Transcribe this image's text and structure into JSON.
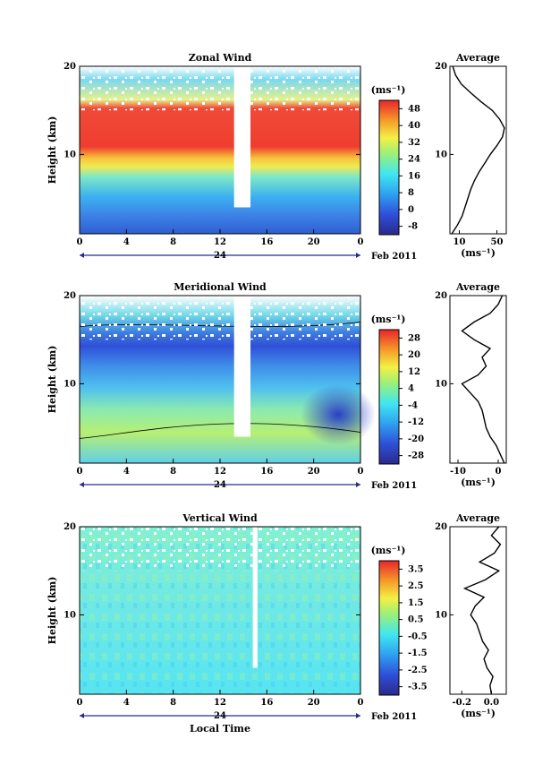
{
  "chart_data": [
    {
      "type": "heatmap",
      "title": "Zonal Wind",
      "ylabel": "Height (km)",
      "xlabel": "",
      "x_ticks": [
        "0",
        "4",
        "8",
        "12",
        "16",
        "20",
        "0"
      ],
      "y_ticks": [
        "10",
        "20"
      ],
      "date_label": "24",
      "month_label": "Feb 2011",
      "xlim": [
        0,
        24
      ],
      "ylim": [
        1,
        20
      ],
      "colorbar": {
        "unit": "(ms⁻¹)",
        "ticks": [
          "48",
          "40",
          "32",
          "24",
          "16",
          "8",
          "0",
          "-8"
        ],
        "range": [
          -12,
          52
        ]
      },
      "data_gap_local_time": [
        13.2,
        14.6
      ],
      "profile": {
        "title": "Average",
        "x_ticks": [
          "10",
          "50"
        ],
        "xlim": [
          0,
          60
        ],
        "xlabel": "(ms⁻¹)",
        "y_ticks": [
          "10",
          "20"
        ],
        "points": [
          [
            1,
            2
          ],
          [
            2,
            8
          ],
          [
            3,
            13
          ],
          [
            4,
            16
          ],
          [
            5,
            19
          ],
          [
            6,
            22
          ],
          [
            7,
            26
          ],
          [
            8,
            31
          ],
          [
            9,
            37
          ],
          [
            10,
            43
          ],
          [
            11,
            50
          ],
          [
            12,
            56
          ],
          [
            13,
            58
          ],
          [
            14,
            53
          ],
          [
            15,
            45
          ],
          [
            16,
            33
          ],
          [
            17,
            22
          ],
          [
            18,
            12
          ],
          [
            19,
            6
          ],
          [
            20,
            3
          ]
        ]
      }
    },
    {
      "type": "heatmap",
      "title": "Meridional Wind",
      "ylabel": "Height (km)",
      "xlabel": "",
      "x_ticks": [
        "0",
        "4",
        "8",
        "12",
        "16",
        "20",
        "0"
      ],
      "y_ticks": [
        "10",
        "20"
      ],
      "date_label": "24",
      "month_label": "Feb 2011",
      "xlim": [
        0,
        24
      ],
      "ylim": [
        1,
        20
      ],
      "colorbar": {
        "unit": "(ms⁻¹)",
        "ticks": [
          "28",
          "20",
          "12",
          "4",
          "-4",
          "-12",
          "-20",
          "-28"
        ],
        "range": [
          -32,
          32
        ]
      },
      "data_gap_local_time": [
        13.2,
        14.6
      ],
      "profile": {
        "title": "Average",
        "x_ticks": [
          "-10",
          "0"
        ],
        "xlim": [
          -12,
          2
        ],
        "xlabel": "(ms⁻¹)",
        "y_ticks": [
          "10",
          "20"
        ],
        "points": [
          [
            1,
            1.5
          ],
          [
            2,
            0.5
          ],
          [
            3,
            -0.5
          ],
          [
            4,
            -2
          ],
          [
            5,
            -3
          ],
          [
            6,
            -3.5
          ],
          [
            7,
            -4
          ],
          [
            8,
            -5
          ],
          [
            9,
            -7
          ],
          [
            10,
            -9
          ],
          [
            11,
            -5
          ],
          [
            12,
            -3
          ],
          [
            13,
            -4
          ],
          [
            14,
            -2
          ],
          [
            15,
            -6
          ],
          [
            16,
            -9
          ],
          [
            17,
            -6
          ],
          [
            18,
            -2
          ],
          [
            19,
            0
          ],
          [
            20,
            1
          ]
        ]
      }
    },
    {
      "type": "heatmap",
      "title": "Vertical Wind",
      "ylabel": "Height (km)",
      "xlabel": "Local Time",
      "x_ticks": [
        "0",
        "4",
        "8",
        "12",
        "16",
        "20",
        "0"
      ],
      "y_ticks": [
        "10",
        "20"
      ],
      "date_label": "24",
      "month_label": "Feb 2011",
      "xlim": [
        0,
        24
      ],
      "ylim": [
        1,
        20
      ],
      "colorbar": {
        "unit": "(ms⁻¹)",
        "ticks": [
          "3.5",
          "2.5",
          "1.5",
          "0.5",
          "-0.5",
          "-1.5",
          "-2.5",
          "-3.5"
        ],
        "range": [
          -4,
          4
        ]
      },
      "data_gap_local_time": [
        14.8,
        15.2
      ],
      "profile": {
        "title": "Average",
        "x_ticks": [
          "-0.2",
          "0.0"
        ],
        "xlim": [
          -0.28,
          0.1
        ],
        "xlabel": "(ms⁻¹)",
        "y_ticks": [
          "10",
          "20"
        ],
        "points": [
          [
            1,
            0.0
          ],
          [
            2,
            -0.01
          ],
          [
            3,
            0.01
          ],
          [
            4,
            -0.03
          ],
          [
            5,
            -0.05
          ],
          [
            6,
            -0.02
          ],
          [
            7,
            -0.06
          ],
          [
            8,
            -0.08
          ],
          [
            9,
            -0.1
          ],
          [
            10,
            -0.14
          ],
          [
            11,
            -0.11
          ],
          [
            12,
            -0.05
          ],
          [
            13,
            -0.18
          ],
          [
            14,
            -0.04
          ],
          [
            15,
            0.05
          ],
          [
            16,
            -0.08
          ],
          [
            17,
            0.02
          ],
          [
            18,
            0.06
          ],
          [
            19,
            0.0
          ],
          [
            20,
            0.05
          ]
        ]
      }
    }
  ]
}
